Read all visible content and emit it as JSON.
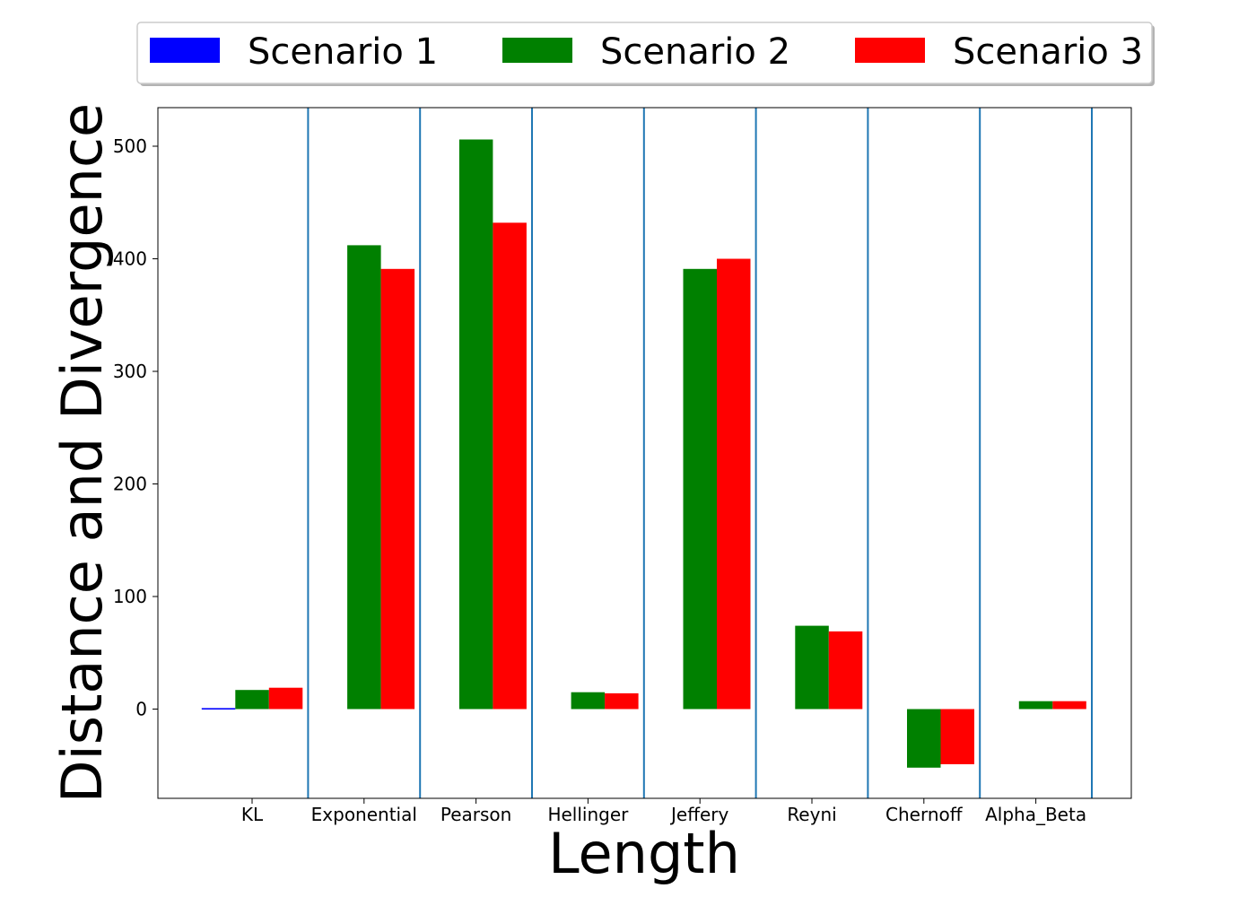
{
  "chart_data": {
    "type": "bar",
    "title": "",
    "xlabel": "Length",
    "ylabel": "Distance and Divergence",
    "categories": [
      "KL",
      "Exponential",
      "Pearson",
      "Hellinger",
      "Jeffery",
      "Reyni",
      "Chernoff",
      "Alpha_Beta"
    ],
    "series": [
      {
        "name": "Scenario 1",
        "color": "#0000ff",
        "values": [
          0.5,
          null,
          null,
          null,
          null,
          null,
          null,
          null
        ]
      },
      {
        "name": "Scenario 2",
        "color": "#008000",
        "values": [
          17,
          412,
          506,
          15,
          391,
          74,
          -52,
          7
        ]
      },
      {
        "name": "Scenario 3",
        "color": "#ff0000",
        "values": [
          19,
          391,
          432,
          14,
          400,
          69,
          -49,
          7
        ]
      }
    ],
    "ylim": [
      -80,
      533
    ],
    "yticks": [
      0,
      100,
      200,
      300,
      400,
      500
    ],
    "grid": false,
    "category_separators": true,
    "separator_color": "#1f77b4",
    "legend_placement": "top-center"
  }
}
